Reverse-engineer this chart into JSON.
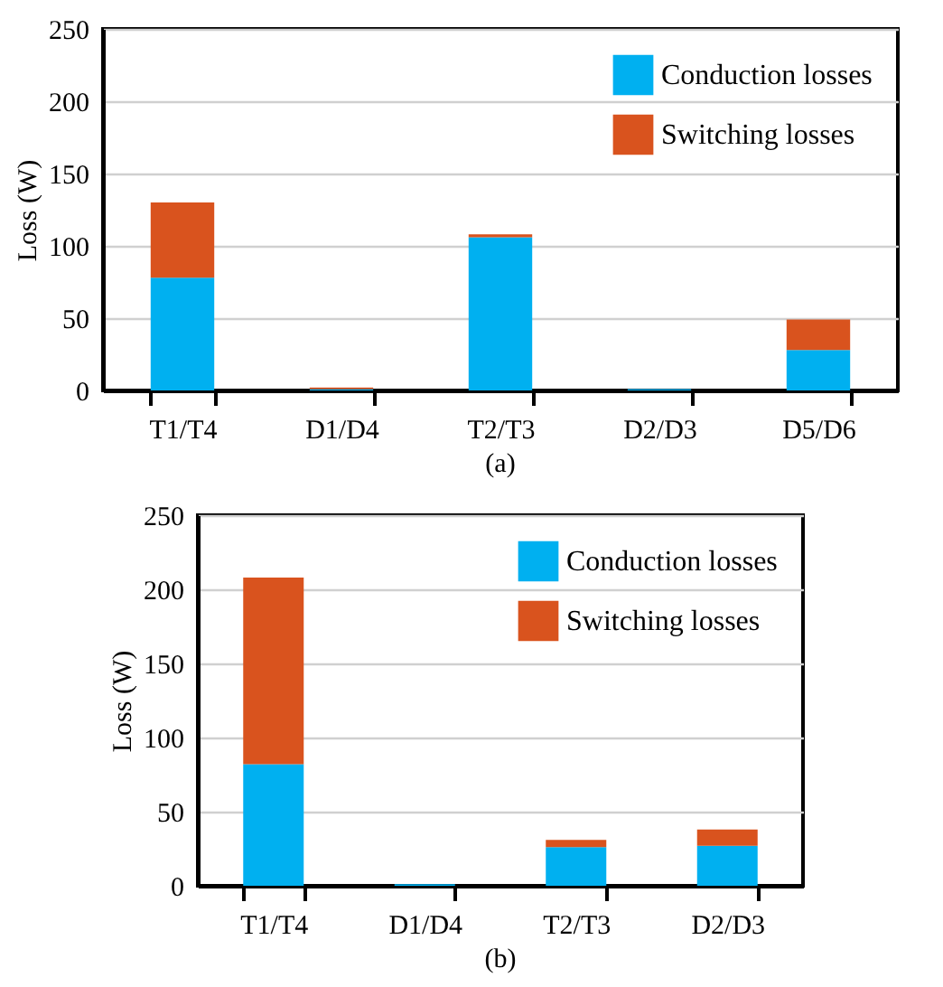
{
  "chart_data": [
    {
      "type": "bar",
      "stacked": true,
      "categories": [
        "T1/T4",
        "D1/D4",
        "T2/T3",
        "D2/D3",
        "D5/D6"
      ],
      "ylabel": "Loss (W)",
      "ylim": [
        0,
        250
      ],
      "yticks": [
        0,
        50,
        100,
        150,
        200,
        250
      ],
      "grid": "y",
      "legend": "top right",
      "annotations": [
        "(a)"
      ],
      "series": [
        {
          "name": "Conduction losses",
          "color": "#00b0f0",
          "values": [
            78,
            1,
            106,
            1,
            28
          ]
        },
        {
          "name": "Switching losses",
          "color": "#d9531e",
          "values": [
            52,
            1,
            2,
            0,
            21
          ]
        }
      ]
    },
    {
      "type": "bar",
      "stacked": true,
      "categories": [
        "T1/T4",
        "D1/D4",
        "T2/T3",
        "D2/D3"
      ],
      "ylabel": "Loss (W)",
      "ylim": [
        0,
        250
      ],
      "yticks": [
        0,
        50,
        100,
        150,
        200,
        250
      ],
      "grid": "y",
      "legend": "top right",
      "annotations": [
        "(b)"
      ],
      "series": [
        {
          "name": "Conduction losses",
          "color": "#00b0f0",
          "values": [
            82,
            1,
            26,
            27
          ]
        },
        {
          "name": "Switching losses",
          "color": "#d9531e",
          "values": [
            126,
            0,
            5,
            11
          ]
        }
      ]
    }
  ]
}
